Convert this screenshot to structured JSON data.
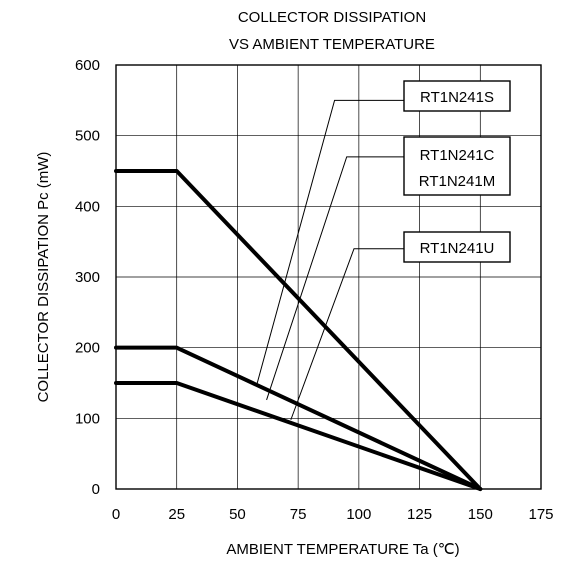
{
  "chart_data": {
    "type": "line",
    "title_lines": [
      "COLLECTOR DISSIPATION",
      "VS AMBIENT TEMPERATURE"
    ],
    "xlabel": "AMBIENT TEMPERATURE Ta (℃)",
    "ylabel": "COLLECTOR DISSIPATION Pc (mW)",
    "xlim": [
      0,
      175
    ],
    "ylim": [
      0,
      600
    ],
    "xticks": [
      0,
      25,
      50,
      75,
      100,
      125,
      150,
      175
    ],
    "yticks": [
      0,
      100,
      200,
      300,
      400,
      500,
      600
    ],
    "grid": true,
    "series": [
      {
        "name": "RT1N241S",
        "x": [
          0,
          25,
          150
        ],
        "y": [
          450,
          450,
          0
        ]
      },
      {
        "name": "RT1N241C / RT1N241M",
        "x": [
          0,
          25,
          150
        ],
        "y": [
          200,
          200,
          0
        ]
      },
      {
        "name": "RT1N241U",
        "x": [
          0,
          25,
          150
        ],
        "y": [
          150,
          150,
          0
        ]
      }
    ],
    "annotations": [
      {
        "series": 0,
        "lines": [
          "RT1N241S"
        ],
        "point": [
          58,
          148
        ],
        "elbow": [
          90,
          550
        ]
      },
      {
        "series": 1,
        "lines": [
          "RT1N241C",
          "RT1N241M"
        ],
        "point": [
          62,
          126
        ],
        "elbow": [
          95,
          470
        ]
      },
      {
        "series": 2,
        "lines": [
          "RT1N241U"
        ],
        "point": [
          72,
          98
        ],
        "elbow": [
          98,
          340
        ]
      }
    ]
  }
}
